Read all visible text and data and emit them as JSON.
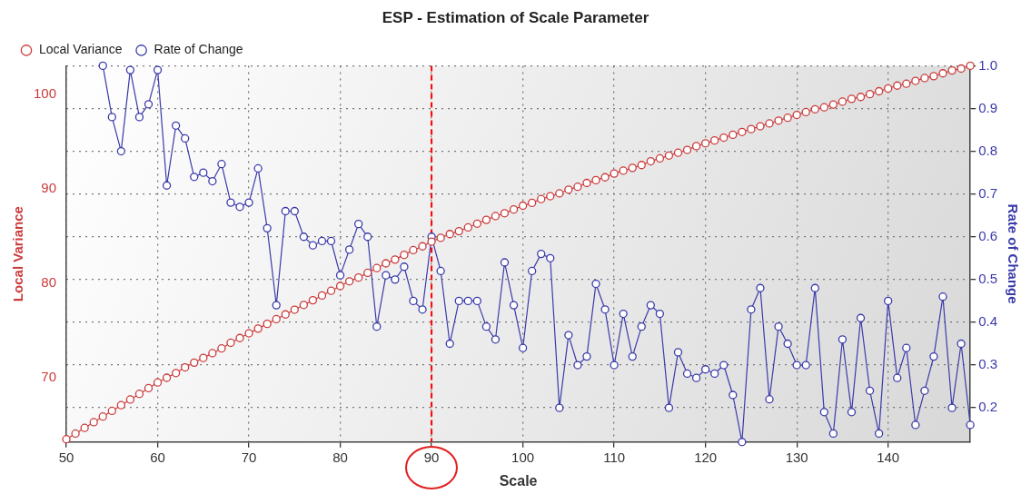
{
  "chart_data": {
    "type": "line",
    "title": "ESP - Estimation of Scale Parameter",
    "xlabel": "Scale",
    "ylabel": "Local Variance",
    "y2label": "Rate of Change",
    "x": [
      50,
      51,
      52,
      53,
      54,
      55,
      56,
      57,
      58,
      59,
      60,
      61,
      62,
      63,
      64,
      65,
      66,
      67,
      68,
      69,
      70,
      71,
      72,
      73,
      74,
      75,
      76,
      77,
      78,
      79,
      80,
      81,
      82,
      83,
      84,
      85,
      86,
      87,
      88,
      89,
      90,
      91,
      92,
      93,
      94,
      95,
      96,
      97,
      98,
      99,
      100,
      101,
      102,
      103,
      104,
      105,
      106,
      107,
      108,
      109,
      110,
      111,
      112,
      113,
      114,
      115,
      116,
      117,
      118,
      119,
      120,
      121,
      122,
      123,
      124,
      125,
      126,
      127,
      128,
      129,
      130,
      131,
      132,
      133,
      134,
      135,
      136,
      137,
      138,
      139,
      140,
      141,
      142,
      143,
      144,
      145,
      146,
      147,
      148,
      149
    ],
    "series": [
      {
        "name": "Local Variance",
        "color": "#cc3b3b",
        "values": [
          63.5,
          64.1,
          64.7,
          65.3,
          65.9,
          66.5,
          67.1,
          67.7,
          68.3,
          68.9,
          69.5,
          70.0,
          70.5,
          71.1,
          71.6,
          72.1,
          72.6,
          73.1,
          73.7,
          74.2,
          74.7,
          75.2,
          75.7,
          76.2,
          76.7,
          77.2,
          77.7,
          78.2,
          78.7,
          79.2,
          79.7,
          80.2,
          80.6,
          81.1,
          81.6,
          82.1,
          82.5,
          83.0,
          83.5,
          83.9,
          84.4,
          84.8,
          85.2,
          85.5,
          85.9,
          86.3,
          86.7,
          87.1,
          87.4,
          87.8,
          88.2,
          88.5,
          88.9,
          89.2,
          89.5,
          89.9,
          90.2,
          90.6,
          90.9,
          91.2,
          91.6,
          91.9,
          92.2,
          92.5,
          92.9,
          93.2,
          93.5,
          93.8,
          94.1,
          94.5,
          94.8,
          95.1,
          95.4,
          95.7,
          96.0,
          96.3,
          96.6,
          96.9,
          97.2,
          97.5,
          97.8,
          98.1,
          98.4,
          98.6,
          98.9,
          99.2,
          99.5,
          99.7,
          100.0,
          100.3,
          100.6,
          100.9,
          101.1,
          101.4,
          101.7,
          101.9,
          102.2,
          102.5,
          102.7,
          103.0
        ]
      },
      {
        "name": "Rate of Change",
        "color": "#3a3aaa",
        "axis": "y2",
        "values": [
          null,
          null,
          null,
          null,
          1.0,
          0.88,
          0.8,
          0.99,
          0.88,
          0.91,
          0.99,
          0.72,
          0.86,
          0.83,
          0.74,
          0.75,
          0.73,
          0.77,
          0.68,
          0.67,
          0.68,
          0.76,
          0.62,
          0.44,
          0.66,
          0.66,
          0.6,
          0.58,
          0.59,
          0.59,
          0.51,
          0.57,
          0.63,
          0.6,
          0.39,
          0.51,
          0.5,
          0.53,
          0.45,
          0.43,
          0.6,
          0.52,
          0.35,
          0.45,
          0.45,
          0.45,
          0.39,
          0.36,
          0.54,
          0.44,
          0.34,
          0.52,
          0.56,
          0.55,
          0.2,
          0.37,
          0.3,
          0.32,
          0.49,
          0.43,
          0.3,
          0.42,
          0.32,
          0.39,
          0.44,
          0.42,
          0.2,
          0.33,
          0.28,
          0.27,
          0.29,
          0.28,
          0.3,
          0.23,
          0.12,
          0.43,
          0.48,
          0.22,
          0.39,
          0.35,
          0.3,
          0.3,
          0.48,
          0.19,
          0.14,
          0.36,
          0.19,
          0.41,
          0.24,
          0.14,
          0.45,
          0.27,
          0.34,
          0.16,
          0.24,
          0.32,
          0.46,
          0.2,
          0.35,
          0.16
        ]
      }
    ],
    "xlim": [
      50,
      149
    ],
    "xticks": [
      50,
      60,
      70,
      80,
      90,
      100,
      110,
      120,
      130,
      140
    ],
    "ylim": [
      63.2,
      103
    ],
    "yticks": [
      70,
      80,
      90,
      100
    ],
    "y2lim": [
      0.12,
      1.0
    ],
    "y2ticks": [
      0.2,
      0.3,
      0.4,
      0.5,
      0.6,
      0.7,
      0.8,
      0.9,
      {
        "value": 1,
        "label": "1.0"
      }
    ],
    "ref_lines": [
      {
        "axis": "x",
        "value": 90,
        "color": "#ff0000",
        "line_style": "dashed"
      }
    ],
    "grid": true,
    "legend": "top left",
    "marker": "circle",
    "line_style": "solid"
  }
}
